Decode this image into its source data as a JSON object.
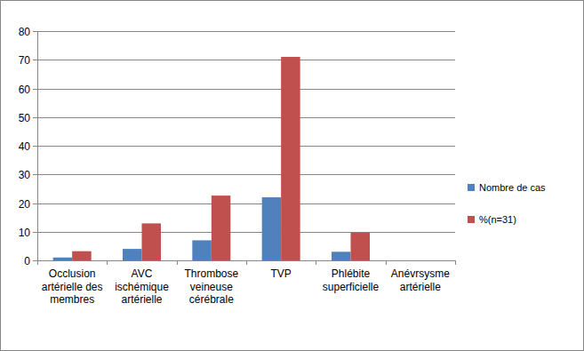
{
  "chart_data": {
    "type": "bar",
    "categories": [
      "Occlusion artérielle des membres",
      "AVC ischémique artérielle",
      "Thrombose veineuse cérébrale",
      "TVP",
      "Phlébite superficielle",
      "Anévrsysme artérielle"
    ],
    "series": [
      {
        "name": "Nombre de cas",
        "color": "#4f81bd",
        "values": [
          1,
          4,
          7,
          22,
          3,
          0
        ]
      },
      {
        "name": "%(n=31)",
        "color": "#c0504d",
        "values": [
          3.2,
          12.9,
          22.6,
          71,
          9.7,
          0
        ]
      }
    ],
    "ylim": [
      0,
      80
    ],
    "yticks": [
      0,
      10,
      20,
      30,
      40,
      50,
      60,
      70,
      80
    ],
    "grid": true,
    "legend": "right"
  }
}
